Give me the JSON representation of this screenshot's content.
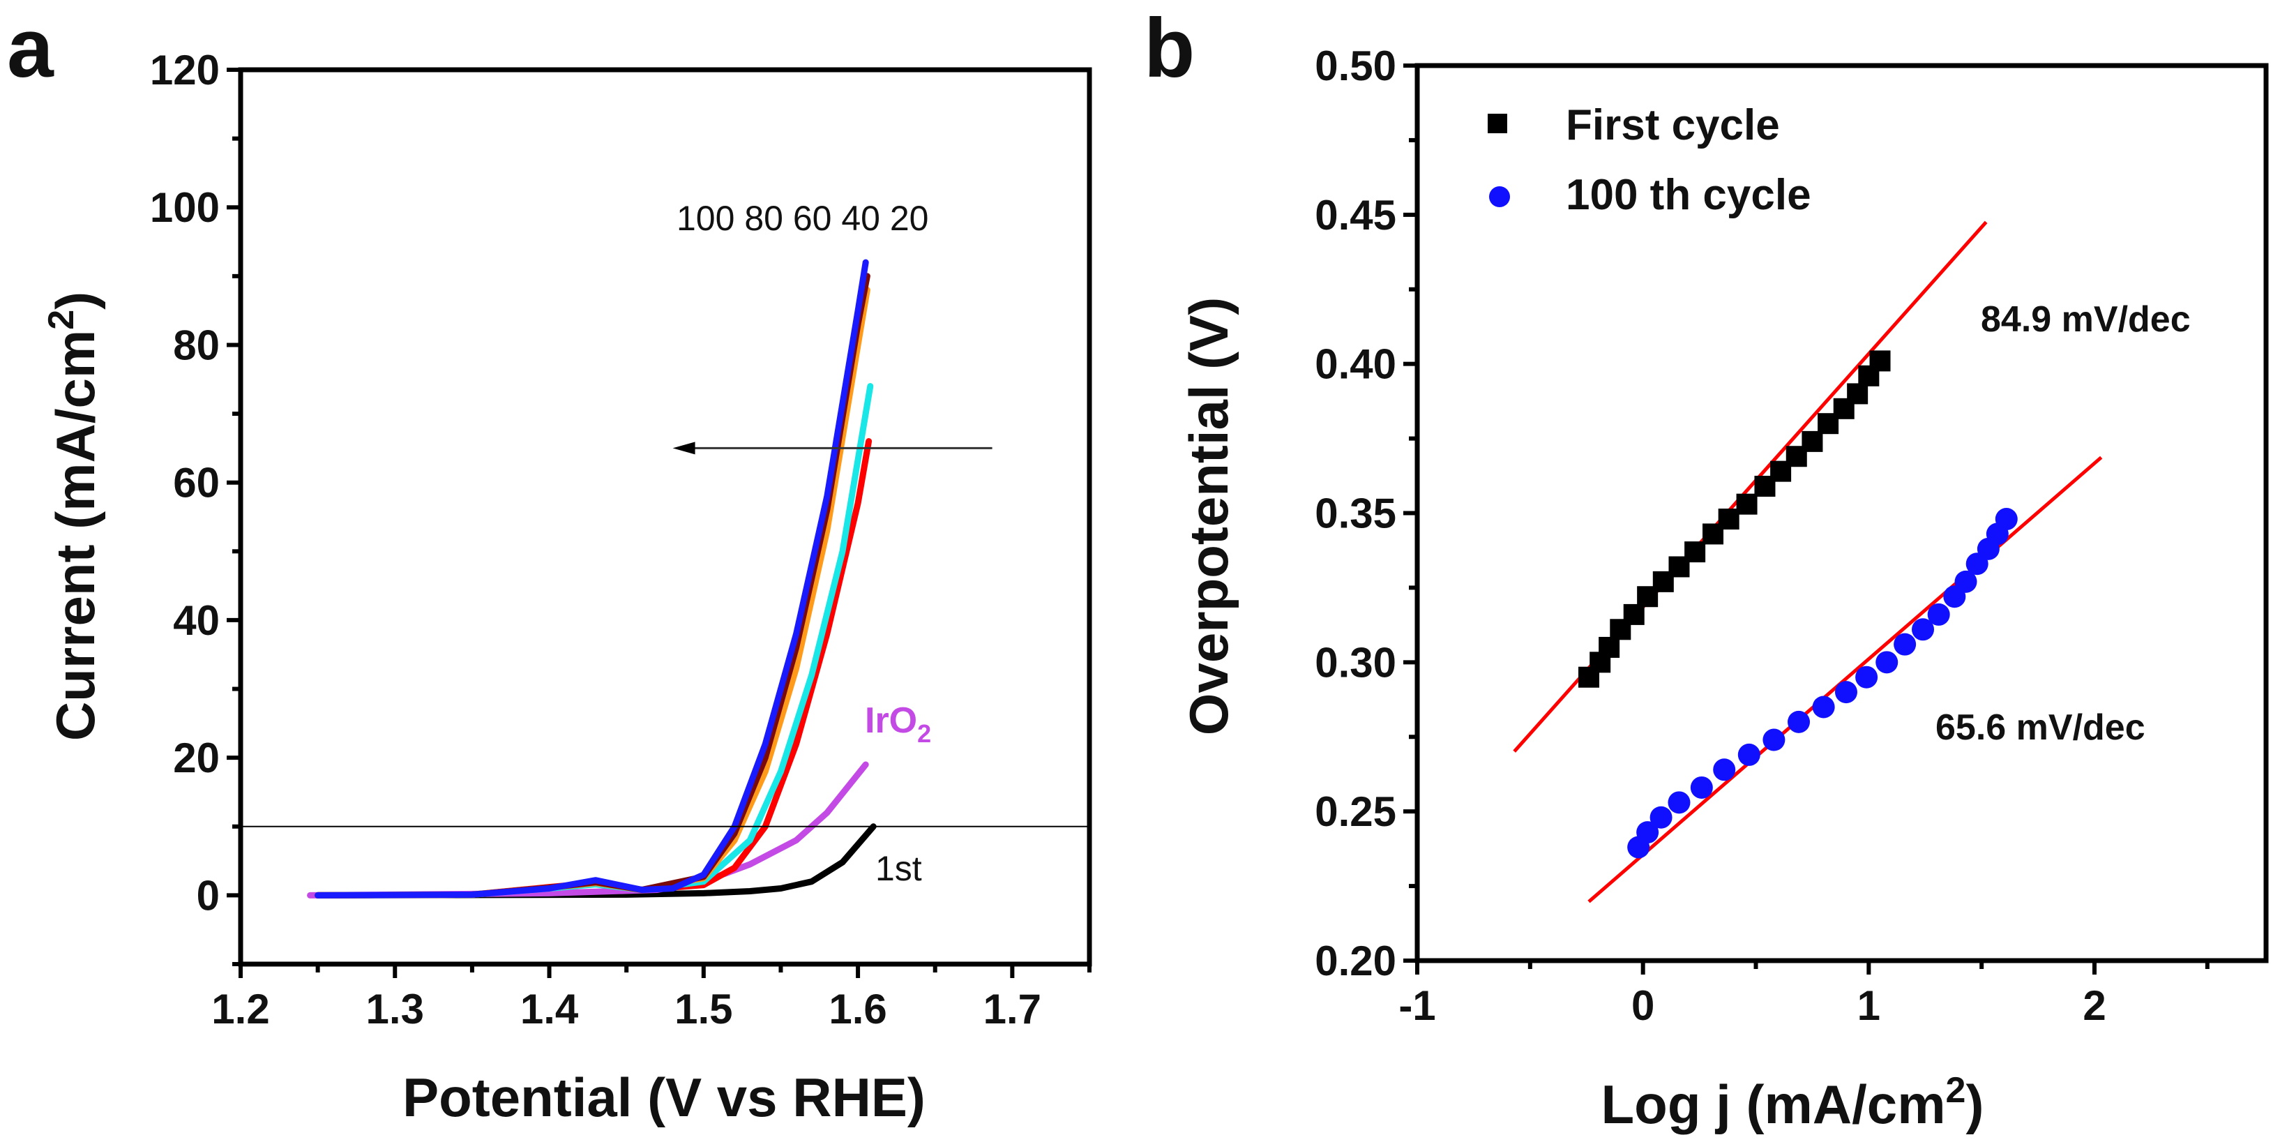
{
  "chart_data": [
    {
      "type": "line",
      "panel_label": "a",
      "xlabel": "Potential (V vs RHE)",
      "ylabel_main": "Current (mA/cm",
      "ylabel_sup": "2",
      "ylabel_end": ")",
      "xlim": [
        1.2,
        1.75
      ],
      "ylim": [
        -10,
        120
      ],
      "xticks": [
        1.2,
        1.3,
        1.4,
        1.5,
        1.6,
        1.7
      ],
      "xtick_labels": [
        "1.2",
        "1.3",
        "1.4",
        "1.5",
        "1.6",
        "1.7"
      ],
      "yticks": [
        0,
        20,
        40,
        60,
        80,
        100,
        120
      ],
      "ytick_labels": [
        "0",
        "20",
        "40",
        "60",
        "80",
        "100",
        "120"
      ],
      "grid": false,
      "reference_line_y": 10,
      "arrow": {
        "y": 65,
        "x_from": 1.687,
        "x_to": 1.48
      },
      "annotations": {
        "cycles": "100 80 60 40 20",
        "iro2_main": "IrO",
        "iro2_sub": "2",
        "first": "1st"
      },
      "series": [
        {
          "name": "1st",
          "color": "#000000",
          "points": [
            [
              1.25,
              0
            ],
            [
              1.45,
              0.1
            ],
            [
              1.5,
              0.3
            ],
            [
              1.53,
              0.6
            ],
            [
              1.55,
              1
            ],
            [
              1.57,
              2
            ],
            [
              1.59,
              4.8
            ],
            [
              1.61,
              10
            ]
          ]
        },
        {
          "name": "IrO2",
          "color": "#c44ae6",
          "points": [
            [
              1.245,
              0
            ],
            [
              1.4,
              0.3
            ],
            [
              1.47,
              0.8
            ],
            [
              1.5,
              2
            ],
            [
              1.53,
              4.5
            ],
            [
              1.56,
              8
            ],
            [
              1.58,
              12
            ],
            [
              1.605,
              19
            ]
          ]
        },
        {
          "name": "20",
          "color": "#ff0000",
          "points": [
            [
              1.25,
              0
            ],
            [
              1.35,
              0.1
            ],
            [
              1.4,
              1.2
            ],
            [
              1.43,
              1.8
            ],
            [
              1.46,
              0.8
            ],
            [
              1.5,
              1.5
            ],
            [
              1.52,
              4
            ],
            [
              1.54,
              10
            ],
            [
              1.56,
              22
            ],
            [
              1.58,
              38
            ],
            [
              1.6,
              57
            ],
            [
              1.607,
              66
            ]
          ]
        },
        {
          "name": "40",
          "color": "#19e6e6",
          "points": [
            [
              1.25,
              0
            ],
            [
              1.35,
              0.1
            ],
            [
              1.4,
              1.0
            ],
            [
              1.43,
              1.6
            ],
            [
              1.46,
              0.8
            ],
            [
              1.5,
              2
            ],
            [
              1.53,
              8
            ],
            [
              1.55,
              18
            ],
            [
              1.57,
              32
            ],
            [
              1.59,
              50
            ],
            [
              1.608,
              74
            ]
          ]
        },
        {
          "name": "60",
          "color": "#ff9a1a",
          "points": [
            [
              1.25,
              0
            ],
            [
              1.35,
              0.1
            ],
            [
              1.4,
              1.1
            ],
            [
              1.43,
              1.8
            ],
            [
              1.46,
              0.8
            ],
            [
              1.5,
              2.5
            ],
            [
              1.52,
              8
            ],
            [
              1.54,
              18
            ],
            [
              1.56,
              33
            ],
            [
              1.58,
              53
            ],
            [
              1.6,
              80
            ],
            [
              1.606,
              88
            ]
          ]
        },
        {
          "name": "80",
          "color": "#7a0a0a",
          "points": [
            [
              1.25,
              0
            ],
            [
              1.35,
              0.1
            ],
            [
              1.4,
              1.1
            ],
            [
              1.43,
              1.9
            ],
            [
              1.46,
              0.8
            ],
            [
              1.5,
              2.7
            ],
            [
              1.52,
              9
            ],
            [
              1.54,
              20
            ],
            [
              1.56,
              36
            ],
            [
              1.58,
              56
            ],
            [
              1.6,
              83
            ],
            [
              1.606,
              90
            ]
          ]
        },
        {
          "name": "100",
          "color": "#1a1aff",
          "points": [
            [
              1.25,
              0
            ],
            [
              1.35,
              0.1
            ],
            [
              1.4,
              1.0
            ],
            [
              1.43,
              2.2
            ],
            [
              1.46,
              0.8
            ],
            [
              1.48,
              1
            ],
            [
              1.5,
              3
            ],
            [
              1.52,
              10
            ],
            [
              1.54,
              22
            ],
            [
              1.56,
              38
            ],
            [
              1.58,
              58
            ],
            [
              1.6,
              85
            ],
            [
              1.605,
              92
            ]
          ]
        }
      ]
    },
    {
      "type": "scatter",
      "panel_label": "b",
      "xlabel_main": "Log j (mA/cm",
      "xlabel_sup": "2",
      "xlabel_end": ")",
      "ylabel": "Overpotential (V)",
      "xlim": [
        -1,
        2.76
      ],
      "ylim": [
        0.2,
        0.5
      ],
      "xticks": [
        -1,
        0,
        1,
        2
      ],
      "xtick_labels": [
        "-1",
        "0",
        "1",
        "2"
      ],
      "yticks": [
        0.2,
        0.25,
        0.3,
        0.35,
        0.4,
        0.45,
        0.5
      ],
      "ytick_labels": [
        "0.20",
        "0.25",
        "0.30",
        "0.35",
        "0.40",
        "0.45",
        "0.50"
      ],
      "grid": false,
      "legend_position": "top-left",
      "series": [
        {
          "name": "First cycle",
          "color": "#000000",
          "marker": "square",
          "points": [
            [
              -0.24,
              0.295
            ],
            [
              -0.19,
              0.3
            ],
            [
              -0.15,
              0.305
            ],
            [
              -0.1,
              0.311
            ],
            [
              -0.04,
              0.316
            ],
            [
              0.02,
              0.322
            ],
            [
              0.09,
              0.327
            ],
            [
              0.16,
              0.332
            ],
            [
              0.23,
              0.337
            ],
            [
              0.31,
              0.343
            ],
            [
              0.38,
              0.348
            ],
            [
              0.46,
              0.353
            ],
            [
              0.54,
              0.359
            ],
            [
              0.61,
              0.364
            ],
            [
              0.68,
              0.369
            ],
            [
              0.75,
              0.374
            ],
            [
              0.82,
              0.38
            ],
            [
              0.89,
              0.385
            ],
            [
              0.95,
              0.39
            ],
            [
              1.0,
              0.396
            ],
            [
              1.05,
              0.401
            ]
          ],
          "fit": {
            "slope": 0.0849,
            "intercept": 0.3185,
            "x_range": [
              -0.57,
              1.52
            ],
            "color": "#ff0000",
            "label": "84.9 mV/dec"
          }
        },
        {
          "name": "100 th cycle",
          "color": "#1010ff",
          "marker": "circle",
          "points": [
            [
              -0.02,
              0.238
            ],
            [
              0.02,
              0.243
            ],
            [
              0.08,
              0.248
            ],
            [
              0.16,
              0.253
            ],
            [
              0.26,
              0.258
            ],
            [
              0.36,
              0.264
            ],
            [
              0.47,
              0.269
            ],
            [
              0.58,
              0.274
            ],
            [
              0.69,
              0.28
            ],
            [
              0.8,
              0.285
            ],
            [
              0.9,
              0.29
            ],
            [
              0.99,
              0.295
            ],
            [
              1.08,
              0.3
            ],
            [
              1.16,
              0.306
            ],
            [
              1.24,
              0.311
            ],
            [
              1.31,
              0.316
            ],
            [
              1.38,
              0.322
            ],
            [
              1.43,
              0.327
            ],
            [
              1.48,
              0.333
            ],
            [
              1.53,
              0.338
            ],
            [
              1.57,
              0.343
            ],
            [
              1.61,
              0.348
            ]
          ],
          "fit": {
            "slope": 0.0656,
            "intercept": 0.2355,
            "x_range": [
              -0.24,
              2.03
            ],
            "color": "#ff0000",
            "label": "65.6 mV/dec"
          }
        }
      ]
    }
  ]
}
